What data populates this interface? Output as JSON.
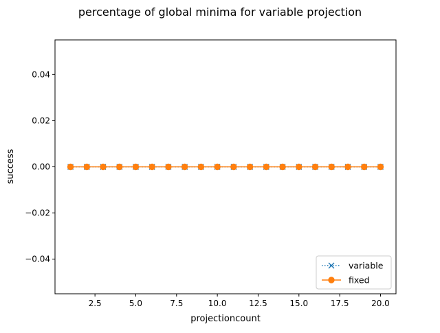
{
  "chart_data": {
    "type": "line",
    "title": "percentage of global minima for variable projection",
    "xlabel": "projectioncount",
    "ylabel": "success",
    "xlim": [
      0.05,
      20.95
    ],
    "ylim": [
      -0.055,
      0.055
    ],
    "x_ticks": [
      2.5,
      5.0,
      7.5,
      10.0,
      12.5,
      15.0,
      17.5,
      20.0
    ],
    "x_tick_labels": [
      "2.5",
      "5.0",
      "7.5",
      "10.0",
      "12.5",
      "15.0",
      "17.5",
      "20.0"
    ],
    "y_ticks": [
      -0.04,
      -0.02,
      0.0,
      0.02,
      0.04
    ],
    "y_tick_labels": [
      "−0.04",
      "−0.02",
      "0.00",
      "0.02",
      "0.04"
    ],
    "grid": false,
    "legend_position": "lower right",
    "x": [
      1,
      2,
      3,
      4,
      5,
      6,
      7,
      8,
      9,
      10,
      11,
      12,
      13,
      14,
      15,
      16,
      17,
      18,
      19,
      20
    ],
    "series": [
      {
        "name": "variable",
        "values": [
          0,
          0,
          0,
          0,
          0,
          0,
          0,
          0,
          0,
          0,
          0,
          0,
          0,
          0,
          0,
          0,
          0,
          0,
          0,
          0
        ],
        "color": "#1f77b4",
        "line_style": "dotted",
        "marker": "x"
      },
      {
        "name": "fixed",
        "values": [
          0,
          0,
          0,
          0,
          0,
          0,
          0,
          0,
          0,
          0,
          0,
          0,
          0,
          0,
          0,
          0,
          0,
          0,
          0,
          0
        ],
        "color": "#ff7f0e",
        "line_style": "solid",
        "marker": "o"
      }
    ]
  }
}
